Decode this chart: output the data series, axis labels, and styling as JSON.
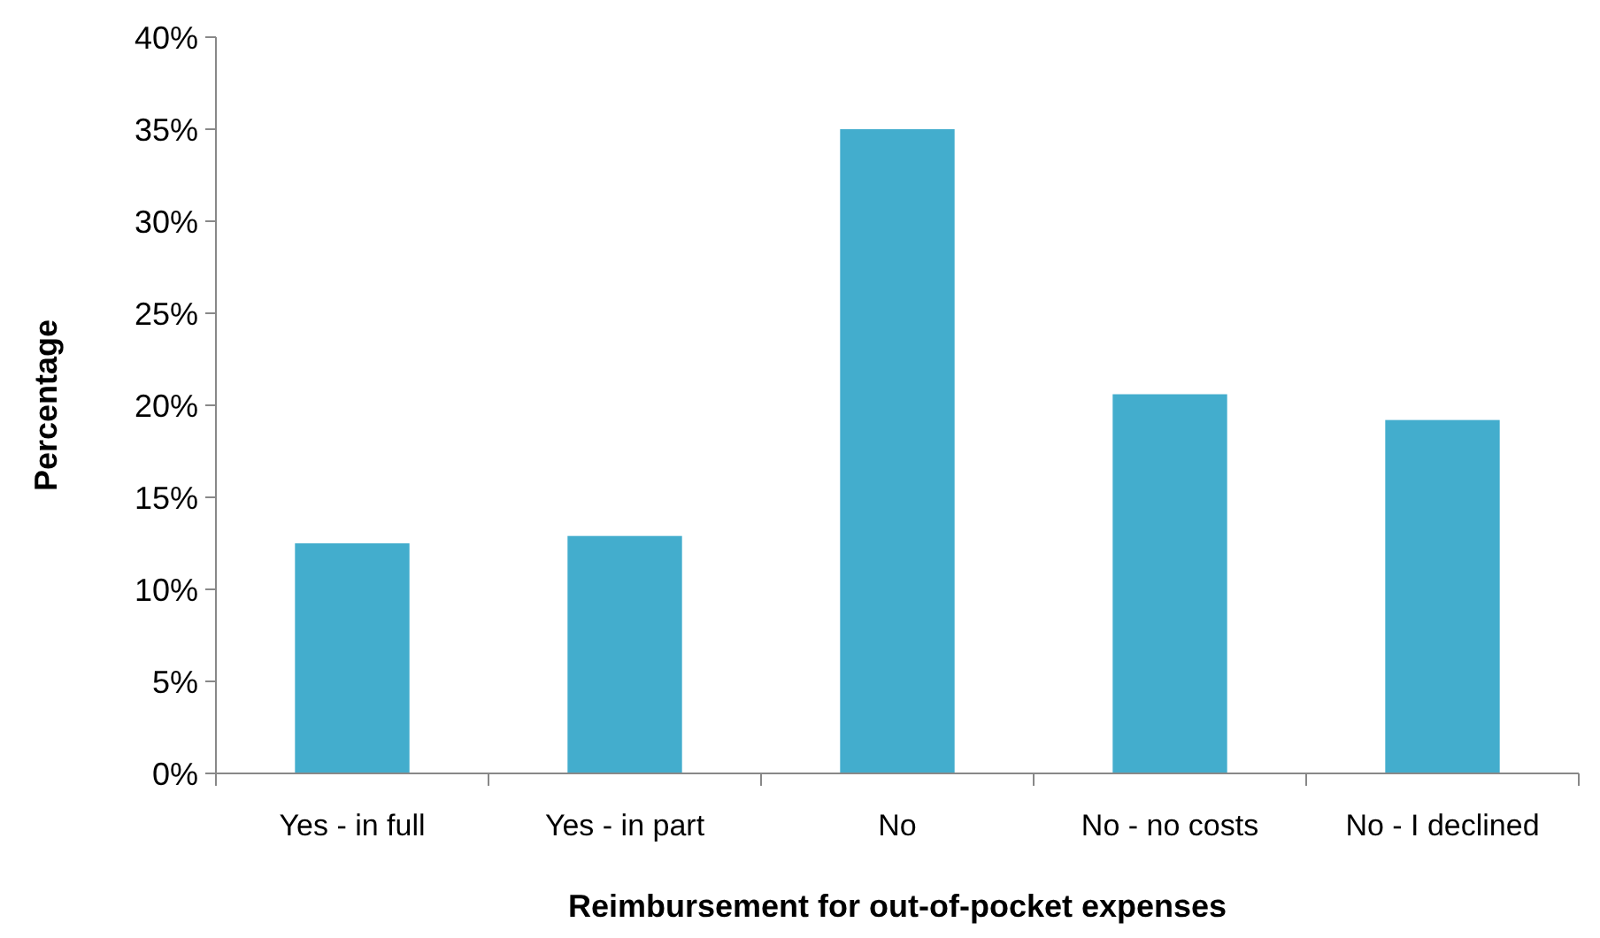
{
  "chart_data": {
    "type": "bar",
    "xlabel": "Reimbursement for out-of-pocket expenses",
    "ylabel": "Percentage",
    "categories": [
      "Yes - in full",
      "Yes - in part",
      "No",
      "No - no costs",
      "No - I declined"
    ],
    "values": [
      12.5,
      12.9,
      35,
      20.6,
      19.2
    ],
    "color": "#43adcd",
    "ylim": [
      0,
      40
    ],
    "yticks": [
      {
        "value": 0,
        "label": "0%"
      },
      {
        "value": 5,
        "label": "5%"
      },
      {
        "value": 10,
        "label": "10%"
      },
      {
        "value": 15,
        "label": "15%"
      },
      {
        "value": 20,
        "label": "20%"
      },
      {
        "value": 25,
        "label": "25%"
      },
      {
        "value": 30,
        "label": "30%"
      },
      {
        "value": 35,
        "label": "35%"
      },
      {
        "value": 40,
        "label": "40%"
      }
    ],
    "grid": false
  }
}
